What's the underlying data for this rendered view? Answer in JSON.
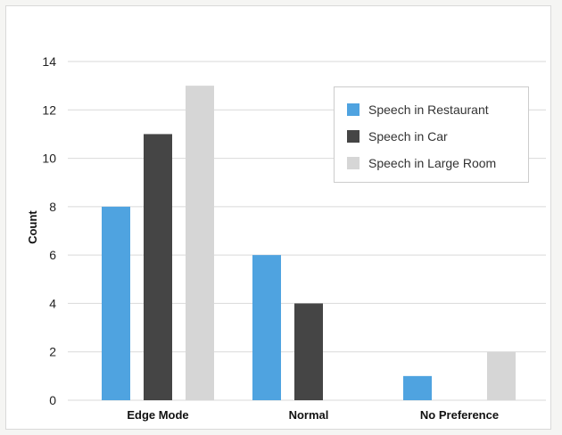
{
  "chart_data": {
    "type": "bar",
    "categories": [
      "Edge Mode",
      "Normal",
      "No Preference"
    ],
    "series": [
      {
        "name": "Speech in Restaurant",
        "values": [
          8,
          6,
          1
        ],
        "color": "#4fa3e0"
      },
      {
        "name": "Speech in Car",
        "values": [
          11,
          4,
          0
        ],
        "color": "#454545"
      },
      {
        "name": "Speech in Large Room",
        "values": [
          13,
          0,
          2
        ],
        "color": "#d6d6d6"
      }
    ],
    "ylabel": "Count",
    "xlabel": "",
    "ylim": [
      0,
      14
    ],
    "yticks": [
      0,
      2,
      4,
      6,
      8,
      10,
      12,
      14
    ],
    "grid": true,
    "legend_position": "top-right",
    "gridline_color": "#d9d9d9"
  }
}
